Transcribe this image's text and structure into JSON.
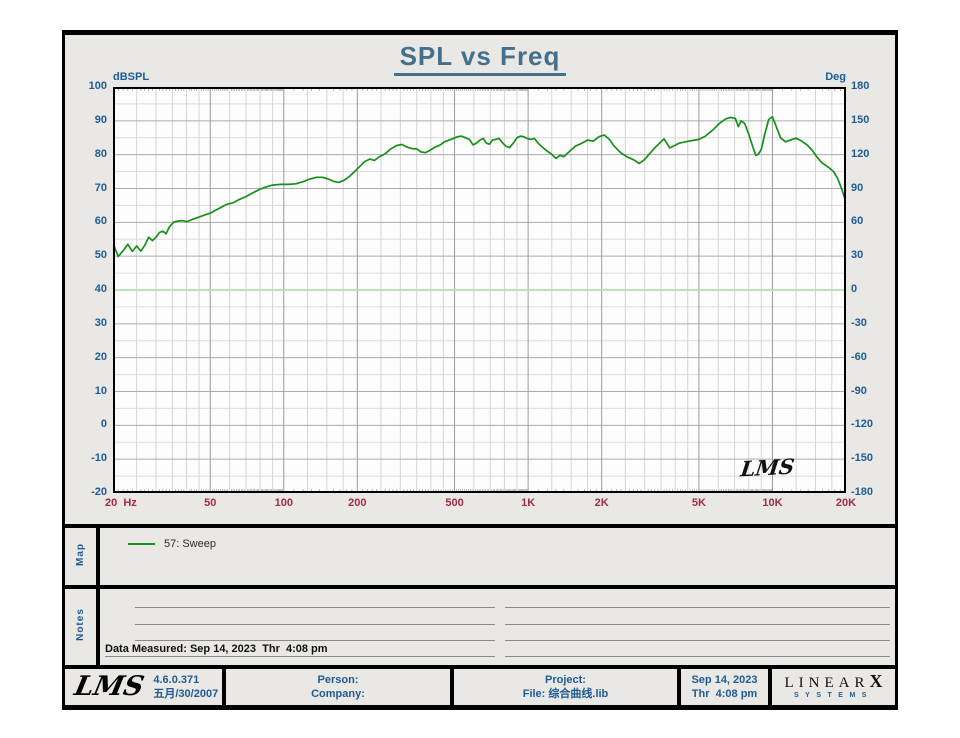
{
  "page": {
    "title": "SPL vs Freq",
    "background_color": "#e9e8e4",
    "accent_blue": "#1e5b94",
    "tick_red": "#a02b4b",
    "curve_green": "#17901a",
    "phase_line_green": "#b5dcb5"
  },
  "axes": {
    "left_title": "dBSPL",
    "right_title": "Deg",
    "left_ticks": [
      "100",
      "90",
      "80",
      "70",
      "60",
      "50",
      "40",
      "30",
      "20",
      "10",
      "0",
      "-10",
      "-20"
    ],
    "right_ticks": [
      "180",
      "150",
      "120",
      "90",
      "60",
      "30",
      "0",
      "-30",
      "-60",
      "-90",
      "-120",
      "-150",
      "-180"
    ],
    "x_ticks": [
      {
        "f": 20,
        "label": "20",
        "unit": "Hz"
      },
      {
        "f": 50,
        "label": "50"
      },
      {
        "f": 100,
        "label": "100"
      },
      {
        "f": 200,
        "label": "200"
      },
      {
        "f": 500,
        "label": "500"
      },
      {
        "f": 1000,
        "label": "1K"
      },
      {
        "f": 2000,
        "label": "2K"
      },
      {
        "f": 5000,
        "label": "5K"
      },
      {
        "f": 10000,
        "label": "10K"
      },
      {
        "f": 20000,
        "label": "20K"
      }
    ]
  },
  "chart_data": {
    "type": "line",
    "title": "SPL vs Freq",
    "x_axis": {
      "label": "Hz",
      "scale": "log",
      "min": 20,
      "max": 20000,
      "labeled_gridlines": [
        20,
        50,
        100,
        200,
        500,
        1000,
        2000,
        5000,
        10000,
        20000
      ]
    },
    "y_axis_left": {
      "label": "dBSPL",
      "min": -20,
      "max": 100,
      "major_step": 10,
      "minor_step": 5
    },
    "y_axis_right": {
      "label": "Deg",
      "min": -180,
      "max": 180,
      "major_step": 30
    },
    "grid": true,
    "legend_position": "map-panel-below-chart",
    "series": [
      {
        "name": "57: Sweep",
        "unit": "dBSPL",
        "color": "#17901a",
        "points": [
          [
            20,
            54
          ],
          [
            20.5,
            51.8
          ],
          [
            21,
            49.9
          ],
          [
            22,
            51.6
          ],
          [
            23,
            53.5
          ],
          [
            24,
            51.4
          ],
          [
            25,
            53
          ],
          [
            26,
            51.5
          ],
          [
            27,
            53.2
          ],
          [
            28,
            55.6
          ],
          [
            29,
            54.6
          ],
          [
            30,
            55.6
          ],
          [
            31,
            57
          ],
          [
            32,
            57.4
          ],
          [
            33,
            56.6
          ],
          [
            34,
            58.6
          ],
          [
            35.5,
            60.1
          ],
          [
            37,
            60.4
          ],
          [
            38.5,
            60.5
          ],
          [
            40,
            60.2
          ],
          [
            42,
            60.8
          ],
          [
            44,
            61.3
          ],
          [
            46,
            61.8
          ],
          [
            48,
            62.3
          ],
          [
            50,
            62.7
          ],
          [
            54,
            64
          ],
          [
            58,
            65.2
          ],
          [
            62,
            65.8
          ],
          [
            66,
            66.8
          ],
          [
            70,
            67.6
          ],
          [
            75,
            68.8
          ],
          [
            80,
            69.8
          ],
          [
            85,
            70.5
          ],
          [
            90,
            71
          ],
          [
            97,
            71.2
          ],
          [
            104,
            71.2
          ],
          [
            112,
            71.4
          ],
          [
            120,
            72
          ],
          [
            128,
            72.8
          ],
          [
            136,
            73.3
          ],
          [
            144,
            73.3
          ],
          [
            152,
            72.8
          ],
          [
            160,
            72.1
          ],
          [
            168,
            71.8
          ],
          [
            176,
            72.4
          ],
          [
            185,
            73.5
          ],
          [
            195,
            75
          ],
          [
            205,
            76.6
          ],
          [
            215,
            78
          ],
          [
            225,
            78.7
          ],
          [
            235,
            78.3
          ],
          [
            245,
            79.3
          ],
          [
            260,
            80.3
          ],
          [
            275,
            81.8
          ],
          [
            290,
            82.7
          ],
          [
            305,
            83
          ],
          [
            320,
            82.2
          ],
          [
            335,
            81.8
          ],
          [
            350,
            81.7
          ],
          [
            365,
            80.8
          ],
          [
            380,
            80.6
          ],
          [
            395,
            81.2
          ],
          [
            415,
            82.2
          ],
          [
            435,
            82.8
          ],
          [
            455,
            83.8
          ],
          [
            475,
            84.3
          ],
          [
            495,
            84.8
          ],
          [
            515,
            85.3
          ],
          [
            535,
            85.5
          ],
          [
            555,
            85
          ],
          [
            575,
            84.5
          ],
          [
            595,
            82.9
          ],
          [
            615,
            83.4
          ],
          [
            635,
            84.3
          ],
          [
            655,
            84.8
          ],
          [
            675,
            83.4
          ],
          [
            695,
            83.1
          ],
          [
            715,
            84.3
          ],
          [
            735,
            84.5
          ],
          [
            760,
            84.8
          ],
          [
            790,
            83.3
          ],
          [
            815,
            82.4
          ],
          [
            840,
            82.1
          ],
          [
            870,
            83.4
          ],
          [
            900,
            85
          ],
          [
            930,
            85.5
          ],
          [
            960,
            85.3
          ],
          [
            990,
            84.8
          ],
          [
            1025,
            84.5
          ],
          [
            1060,
            84.8
          ],
          [
            1100,
            83.4
          ],
          [
            1150,
            82.1
          ],
          [
            1200,
            81
          ],
          [
            1250,
            80.1
          ],
          [
            1300,
            78.9
          ],
          [
            1350,
            79.8
          ],
          [
            1400,
            79.4
          ],
          [
            1480,
            81
          ],
          [
            1560,
            82.5
          ],
          [
            1650,
            83.3
          ],
          [
            1750,
            84.3
          ],
          [
            1850,
            84
          ],
          [
            1950,
            85.3
          ],
          [
            2050,
            85.8
          ],
          [
            2150,
            84.5
          ],
          [
            2250,
            82.5
          ],
          [
            2400,
            80.5
          ],
          [
            2550,
            79.3
          ],
          [
            2700,
            78.5
          ],
          [
            2850,
            77.4
          ],
          [
            3000,
            78.6
          ],
          [
            3150,
            80.4
          ],
          [
            3300,
            82
          ],
          [
            3450,
            83.4
          ],
          [
            3600,
            84.7
          ],
          [
            3800,
            82
          ],
          [
            3950,
            82.6
          ],
          [
            4150,
            83.4
          ],
          [
            4400,
            83.8
          ],
          [
            4700,
            84.2
          ],
          [
            5000,
            84.5
          ],
          [
            5300,
            85.4
          ],
          [
            5700,
            87.3
          ],
          [
            6100,
            89.4
          ],
          [
            6450,
            90.6
          ],
          [
            6750,
            91
          ],
          [
            7050,
            90.7
          ],
          [
            7250,
            88.3
          ],
          [
            7450,
            90
          ],
          [
            7700,
            89.2
          ],
          [
            8000,
            86
          ],
          [
            8300,
            82.4
          ],
          [
            8550,
            79.8
          ],
          [
            8750,
            80.1
          ],
          [
            9000,
            81.6
          ],
          [
            9300,
            86
          ],
          [
            9650,
            90.4
          ],
          [
            10000,
            91.2
          ],
          [
            10400,
            88
          ],
          [
            10800,
            85
          ],
          [
            11300,
            83.8
          ],
          [
            11900,
            84.4
          ],
          [
            12500,
            84.9
          ],
          [
            13100,
            84.1
          ],
          [
            13800,
            83
          ],
          [
            14500,
            81.4
          ],
          [
            15200,
            79.3
          ],
          [
            16000,
            77.5
          ],
          [
            17000,
            76.2
          ],
          [
            17800,
            75
          ],
          [
            18500,
            72.9
          ],
          [
            19200,
            69.9
          ],
          [
            19700,
            67.4
          ],
          [
            20000,
            68
          ]
        ]
      },
      {
        "name": "phase reference (flat)",
        "unit": "Deg",
        "color": "#b5dcb5",
        "constant_deg_value": 0
      }
    ]
  },
  "plot_watermark": "LMS",
  "map_panel": {
    "label": "Map",
    "legend": [
      {
        "swatch_color": "#17901a",
        "text": "57: Sweep"
      }
    ]
  },
  "notes_panel": {
    "label": "Notes",
    "data_measured": "Data Measured: Sep 14, 2023  Thr  4:08 pm"
  },
  "footer": {
    "logo_text": "LMS",
    "version": "4.6.0.371",
    "version_date": "五月/30/2007",
    "person_label": "Person:",
    "company_label": "Company:",
    "project_label": "Project:",
    "file_label": "File: 综合曲线.lib",
    "date": "Sep 14, 2023",
    "time": "Thr  4:08 pm",
    "brand": {
      "linear": "LINEAR",
      "x": "X",
      "systems": "SYSTEMS"
    }
  }
}
